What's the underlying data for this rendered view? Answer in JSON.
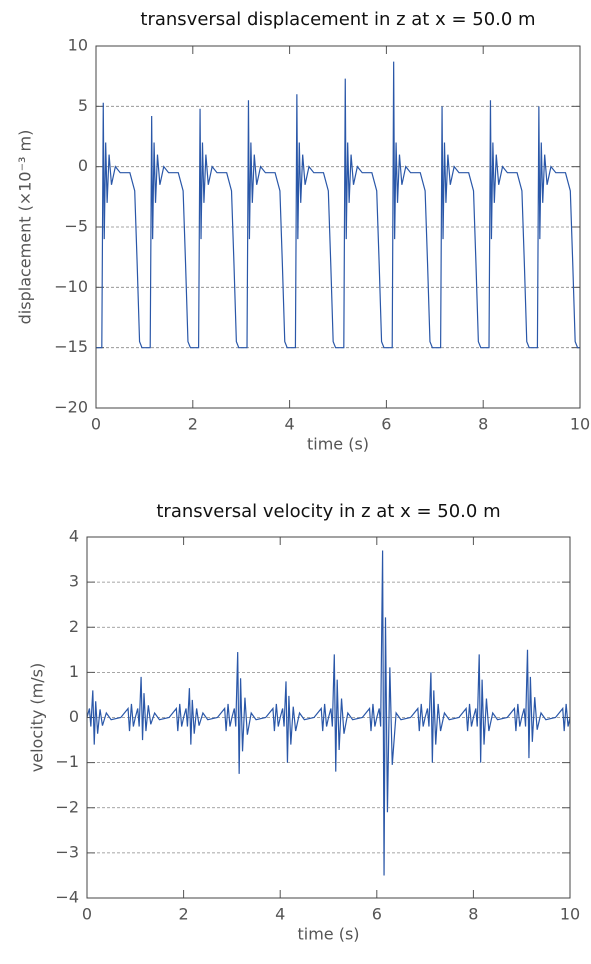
{
  "chart_data": [
    {
      "type": "line",
      "title": "transversal displacement in z at x = 50.0 m",
      "xlabel": "time (s)",
      "ylabel": "displacement (×10⁻³ m)",
      "xlim": [
        0,
        10
      ],
      "xticks": [
        0,
        2,
        4,
        6,
        8,
        10
      ],
      "ylim": [
        -20,
        10
      ],
      "yticks": [
        {
          "value": -20,
          "label": "−20"
        },
        {
          "value": -15,
          "label": "−15"
        },
        {
          "value": -10,
          "label": "−10"
        },
        {
          "value": -5,
          "label": "−5"
        },
        0,
        5,
        10
      ],
      "grid": true,
      "x": [
        0,
        0.12,
        0.15,
        0.17,
        0.2,
        0.23,
        0.27,
        0.32,
        0.4,
        0.5,
        0.7,
        0.8,
        0.85,
        0.9,
        0.95,
        1,
        1.12,
        1.15,
        1.17,
        1.2,
        1.23,
        1.27,
        1.32,
        1.4,
        1.5,
        1.7,
        1.8,
        1.85,
        1.9,
        1.95,
        2,
        2.12,
        2.15,
        2.17,
        2.2,
        2.23,
        2.27,
        2.32,
        2.4,
        2.5,
        2.7,
        2.8,
        2.85,
        2.9,
        2.95,
        3,
        3.12,
        3.15,
        3.17,
        3.2,
        3.23,
        3.27,
        3.32,
        3.4,
        3.5,
        3.7,
        3.8,
        3.85,
        3.9,
        3.95,
        4,
        4.12,
        4.15,
        4.17,
        4.2,
        4.23,
        4.27,
        4.32,
        4.4,
        4.5,
        4.7,
        4.8,
        4.85,
        4.9,
        4.95,
        5,
        5.12,
        5.15,
        5.17,
        5.2,
        5.23,
        5.27,
        5.32,
        5.4,
        5.5,
        5.7,
        5.8,
        5.85,
        5.9,
        5.95,
        6,
        6.12,
        6.15,
        6.17,
        6.2,
        6.23,
        6.27,
        6.32,
        6.4,
        6.5,
        6.7,
        6.8,
        6.85,
        6.9,
        6.95,
        7,
        7.12,
        7.15,
        7.17,
        7.2,
        7.23,
        7.27,
        7.32,
        7.4,
        7.5,
        7.7,
        7.8,
        7.85,
        7.9,
        7.95,
        8,
        8.12,
        8.15,
        8.17,
        8.2,
        8.23,
        8.27,
        8.32,
        8.4,
        8.5,
        8.7,
        8.8,
        8.85,
        8.9,
        8.95,
        9,
        9.12,
        9.15,
        9.17,
        9.2,
        9.23,
        9.27,
        9.32,
        9.4,
        9.5,
        9.7,
        9.8,
        9.85,
        9.9,
        9.95,
        10
      ],
      "series": [
        {
          "color": "#2a57a8",
          "values": [
            -15,
            -15,
            5.3,
            -6,
            2,
            -3,
            1,
            -1.5,
            0,
            -0.5,
            -0.5,
            -2,
            -8,
            -14.5,
            -15,
            -15,
            -15,
            4.2,
            -6,
            2,
            -3,
            1,
            -1.5,
            0,
            -0.5,
            -0.5,
            -2,
            -8,
            -14.5,
            -15,
            -15,
            -15,
            4.8,
            -6,
            2,
            -3,
            1,
            -1.5,
            0,
            -0.5,
            -0.5,
            -2,
            -8,
            -14.5,
            -15,
            -15,
            -15,
            5.5,
            -6,
            2,
            -3,
            1,
            -1.5,
            0,
            -0.5,
            -0.5,
            -2,
            -8,
            -14.5,
            -15,
            -15,
            -15,
            6,
            -6,
            2,
            -3,
            1,
            -1.5,
            0,
            -0.5,
            -0.5,
            -2,
            -8,
            -14.5,
            -15,
            -15,
            -15,
            7.3,
            -6,
            2,
            -3,
            1,
            -1.5,
            0,
            -0.5,
            -0.5,
            -2,
            -8,
            -14.5,
            -15,
            -15,
            -15,
            8.7,
            -6,
            2,
            -3,
            1,
            -1.5,
            0,
            -0.5,
            -0.5,
            -2,
            -8,
            -14.5,
            -15,
            -15,
            -15,
            5,
            -6,
            2,
            -3,
            1,
            -1.5,
            0,
            -0.5,
            -0.5,
            -2,
            -8,
            -14.5,
            -15,
            -15,
            -15,
            5.5,
            -6,
            2,
            -3,
            1,
            -1.5,
            0,
            -0.5,
            -0.5,
            -2,
            -8,
            -14.5,
            -15,
            -15,
            -15,
            5,
            -6,
            2,
            -3,
            1,
            -1.5,
            0,
            -0.5,
            -0.5,
            -2,
            -8,
            -14.5,
            -15,
            -15
          ]
        }
      ]
    },
    {
      "type": "line",
      "title": "transversal velocity in z at x = 50.0 m",
      "xlabel": "time (s)",
      "ylabel": "velocity (m/s)",
      "xlim": [
        0,
        10
      ],
      "xticks": [
        0,
        2,
        4,
        6,
        8,
        10
      ],
      "ylim": [
        -4,
        4
      ],
      "yticks": [
        {
          "value": -4,
          "label": "−4"
        },
        {
          "value": -3,
          "label": "−3"
        },
        {
          "value": -2,
          "label": "−2"
        },
        {
          "value": -1,
          "label": "−1"
        },
        0,
        1,
        2,
        3,
        4
      ],
      "grid": true,
      "x": [
        0,
        0.05,
        0.08,
        0.12,
        0.15,
        0.18,
        0.22,
        0.27,
        0.32,
        0.4,
        0.5,
        0.7,
        0.85,
        0.88,
        0.92,
        0.96,
        1,
        1.05,
        1.08,
        1.12,
        1.15,
        1.18,
        1.22,
        1.27,
        1.32,
        1.4,
        1.5,
        1.7,
        1.85,
        1.88,
        1.92,
        1.96,
        2,
        2.05,
        2.08,
        2.12,
        2.15,
        2.18,
        2.22,
        2.27,
        2.32,
        2.4,
        2.5,
        2.7,
        2.85,
        2.88,
        2.92,
        2.96,
        3,
        3.05,
        3.08,
        3.12,
        3.15,
        3.18,
        3.22,
        3.27,
        3.32,
        3.4,
        3.5,
        3.7,
        3.85,
        3.88,
        3.92,
        3.96,
        4,
        4.05,
        4.08,
        4.12,
        4.15,
        4.18,
        4.22,
        4.27,
        4.32,
        4.4,
        4.5,
        4.7,
        4.85,
        4.88,
        4.92,
        4.96,
        5,
        5.05,
        5.08,
        5.12,
        5.15,
        5.18,
        5.22,
        5.27,
        5.32,
        5.4,
        5.5,
        5.7,
        5.85,
        5.88,
        5.92,
        5.96,
        6,
        6.05,
        6.08,
        6.12,
        6.15,
        6.18,
        6.22,
        6.27,
        6.32,
        6.4,
        6.5,
        6.7,
        6.85,
        6.88,
        6.92,
        6.96,
        7,
        7.05,
        7.08,
        7.12,
        7.15,
        7.18,
        7.22,
        7.27,
        7.32,
        7.4,
        7.5,
        7.7,
        7.85,
        7.88,
        7.92,
        7.96,
        8,
        8.05,
        8.08,
        8.12,
        8.15,
        8.18,
        8.22,
        8.27,
        8.32,
        8.4,
        8.5,
        8.7,
        8.85,
        8.88,
        8.92,
        8.96,
        9,
        9.05,
        9.08,
        9.12,
        9.15,
        9.18,
        9.22,
        9.27,
        9.32,
        9.4,
        9.5,
        9.7,
        9.85,
        9.88,
        9.92,
        9.96,
        10
      ],
      "series": [
        {
          "color": "#2a57a8",
          "values": [
            0,
            0.2,
            -0.2,
            0.6,
            -0.6,
            0.36,
            -0.36,
            0.18,
            -0.18,
            0.1,
            -0.05,
            0,
            0.2,
            -0.3,
            0.3,
            -0.2,
            0,
            0.2,
            -0.2,
            0.9,
            -0.5,
            0.54,
            -0.3,
            0.27,
            -0.15,
            0.1,
            -0.05,
            0,
            0.2,
            -0.3,
            0.3,
            -0.2,
            0,
            0.2,
            -0.2,
            0.65,
            -0.6,
            0.39,
            -0.36,
            0.2,
            -0.18,
            0.1,
            -0.05,
            0,
            0.2,
            -0.3,
            0.3,
            -0.2,
            0,
            0.2,
            -0.2,
            1.45,
            -1.25,
            0.87,
            -0.75,
            0.44,
            -0.38,
            0.1,
            -0.05,
            0,
            0.2,
            -0.3,
            0.3,
            -0.2,
            0,
            0.2,
            -0.2,
            0.8,
            -1.0,
            0.48,
            -0.6,
            0.24,
            -0.3,
            0.1,
            -0.05,
            0,
            0.2,
            -0.3,
            0.3,
            -0.2,
            0,
            0.2,
            -0.2,
            1.4,
            -1.2,
            0.84,
            -0.72,
            0.42,
            -0.36,
            0.1,
            -0.05,
            0,
            0.2,
            -0.3,
            0.3,
            -0.2,
            0,
            0.2,
            -0.2,
            3.7,
            -3.5,
            2.22,
            -2.1,
            1.11,
            -1.05,
            0.1,
            -0.05,
            0,
            0.2,
            -0.3,
            0.3,
            -0.2,
            0,
            0.2,
            -0.2,
            1.0,
            -1.0,
            0.6,
            -0.6,
            0.3,
            -0.3,
            0.1,
            -0.05,
            0,
            0.2,
            -0.3,
            0.3,
            -0.2,
            0,
            0.2,
            -0.2,
            1.4,
            -1.0,
            0.84,
            -0.6,
            0.42,
            -0.3,
            0.1,
            -0.05,
            0,
            0.2,
            -0.3,
            0.3,
            -0.2,
            0,
            0.2,
            -0.2,
            1.5,
            -0.9,
            0.9,
            -0.54,
            0.45,
            -0.27,
            0.1,
            -0.05,
            0,
            0.2,
            -0.3,
            0.3,
            -0.2,
            0
          ]
        }
      ]
    }
  ]
}
